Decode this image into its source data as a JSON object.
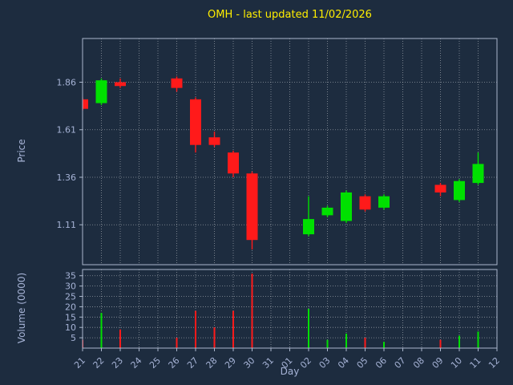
{
  "colors": {
    "background": "#1d2c3f",
    "title": "#ffee00",
    "label": "#a6b3d6",
    "tick": "#a6b3d6",
    "grid": "#ffffff",
    "spine": "#aab6cc",
    "up": "#00e000",
    "down": "#ff1a1a"
  },
  "chart_data": {
    "type": "candlestick+volume",
    "title": "OMH - last updated 11/02/2026",
    "xlabel": "Day",
    "ylabel_price": "Price",
    "ylabel_volume": "Volume (0000)",
    "grid": "dotted",
    "x_ticks": [
      "21",
      "22",
      "23",
      "24",
      "25",
      "26",
      "27",
      "28",
      "29",
      "30",
      "31",
      "01",
      "02",
      "03",
      "04",
      "05",
      "06",
      "07",
      "08",
      "09",
      "10",
      "11",
      "12"
    ],
    "price_ticks": [
      1.11,
      1.36,
      1.61,
      1.86
    ],
    "volume_ticks": [
      5,
      10,
      15,
      20,
      25,
      30,
      35
    ],
    "price_range": [
      0.9,
      2.09
    ],
    "volume_range": [
      0,
      38
    ],
    "candles": [
      {
        "day": "21",
        "open": 1.77,
        "high": 1.78,
        "low": 1.71,
        "close": 1.72,
        "volume": 4
      },
      {
        "day": "22",
        "open": 1.75,
        "high": 1.88,
        "low": 1.74,
        "close": 1.87,
        "volume": 17
      },
      {
        "day": "23",
        "open": 1.86,
        "high": 1.88,
        "low": 1.83,
        "close": 1.84,
        "volume": 9
      },
      {
        "day": "26",
        "open": 1.88,
        "high": 1.89,
        "low": 1.81,
        "close": 1.83,
        "volume": 5
      },
      {
        "day": "27",
        "open": 1.77,
        "high": 1.78,
        "low": 1.49,
        "close": 1.53,
        "volume": 18
      },
      {
        "day": "28",
        "open": 1.57,
        "high": 1.6,
        "low": 1.52,
        "close": 1.53,
        "volume": 10
      },
      {
        "day": "29",
        "open": 1.49,
        "high": 1.5,
        "low": 1.36,
        "close": 1.38,
        "volume": 18
      },
      {
        "day": "30",
        "open": 1.38,
        "high": 1.39,
        "low": 0.98,
        "close": 1.03,
        "volume": 36
      },
      {
        "day": "02",
        "open": 1.06,
        "high": 1.26,
        "low": 1.05,
        "close": 1.14,
        "volume": 19
      },
      {
        "day": "03",
        "open": 1.16,
        "high": 1.21,
        "low": 1.15,
        "close": 1.2,
        "volume": 4
      },
      {
        "day": "04",
        "open": 1.13,
        "high": 1.29,
        "low": 1.12,
        "close": 1.28,
        "volume": 7
      },
      {
        "day": "05",
        "open": 1.26,
        "high": 1.27,
        "low": 1.18,
        "close": 1.19,
        "volume": 5
      },
      {
        "day": "06",
        "open": 1.2,
        "high": 1.27,
        "low": 1.19,
        "close": 1.26,
        "volume": 3
      },
      {
        "day": "09",
        "open": 1.32,
        "high": 1.33,
        "low": 1.26,
        "close": 1.28,
        "volume": 4
      },
      {
        "day": "10",
        "open": 1.24,
        "high": 1.35,
        "low": 1.23,
        "close": 1.34,
        "volume": 6
      },
      {
        "day": "11",
        "open": 1.33,
        "high": 1.49,
        "low": 1.32,
        "close": 1.43,
        "volume": 8
      }
    ]
  }
}
